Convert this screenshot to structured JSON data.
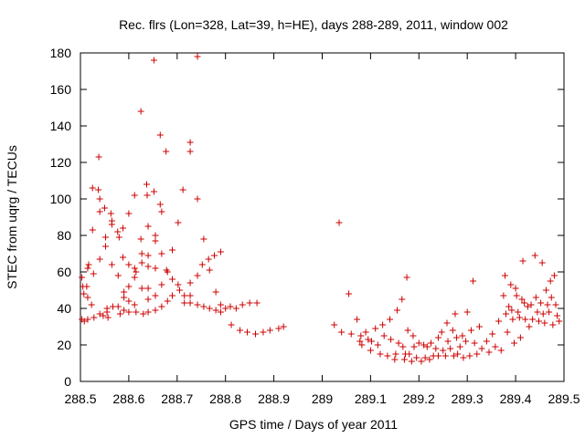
{
  "chart_data": {
    "type": "scatter",
    "title": "Rec. flrs (Lon=328, Lat=39, h=HE), days 288-289, 2011, window 002",
    "xlabel": "GPS time / Days of year 2011",
    "ylabel": "STEC from uqrg / TECUs",
    "xlim": [
      288.5,
      289.5
    ],
    "ylim": [
      0,
      180
    ],
    "x_ticks": [
      288.5,
      288.6,
      288.7,
      288.8,
      288.9,
      289,
      289.1,
      289.2,
      289.3,
      289.4,
      289.5
    ],
    "x_tick_labels": [
      "288.5",
      "288.6",
      "288.7",
      "288.8",
      "288.9",
      "289",
      "289.1",
      "289.2",
      "289.3",
      "289.4",
      "289.5"
    ],
    "y_ticks": [
      0,
      20,
      40,
      60,
      80,
      100,
      120,
      140,
      160,
      180
    ],
    "y_tick_labels": [
      "0",
      "20",
      "40",
      "60",
      "80",
      "100",
      "120",
      "140",
      "160",
      "180"
    ],
    "marker": "+",
    "marker_color": "#cc0000",
    "grid": false,
    "points": [
      [
        288.503,
        57
      ],
      [
        288.505,
        52
      ],
      [
        288.507,
        48
      ],
      [
        288.503,
        34
      ],
      [
        288.508,
        33
      ],
      [
        288.515,
        62
      ],
      [
        288.517,
        64
      ],
      [
        288.513,
        52
      ],
      [
        288.515,
        46
      ],
      [
        288.515,
        34
      ],
      [
        288.525,
        106
      ],
      [
        288.525,
        83
      ],
      [
        288.527,
        59
      ],
      [
        288.523,
        42
      ],
      [
        288.528,
        35
      ],
      [
        288.538,
        123
      ],
      [
        288.537,
        105
      ],
      [
        288.54,
        100
      ],
      [
        288.54,
        93
      ],
      [
        288.54,
        67
      ],
      [
        288.54,
        37
      ],
      [
        288.547,
        36
      ],
      [
        288.55,
        95
      ],
      [
        288.552,
        79
      ],
      [
        288.552,
        74
      ],
      [
        288.555,
        40
      ],
      [
        288.555,
        38
      ],
      [
        288.557,
        35
      ],
      [
        288.563,
        92
      ],
      [
        288.565,
        88
      ],
      [
        288.565,
        86
      ],
      [
        288.565,
        64
      ],
      [
        288.567,
        41
      ],
      [
        288.577,
        82
      ],
      [
        288.58,
        79
      ],
      [
        288.578,
        58
      ],
      [
        288.578,
        41
      ],
      [
        288.582,
        37
      ],
      [
        288.588,
        84
      ],
      [
        288.588,
        68
      ],
      [
        288.59,
        49
      ],
      [
        288.59,
        46
      ],
      [
        288.59,
        39
      ],
      [
        288.6,
        92
      ],
      [
        288.6,
        64
      ],
      [
        288.6,
        52
      ],
      [
        288.6,
        44
      ],
      [
        288.6,
        38
      ],
      [
        288.612,
        102
      ],
      [
        288.612,
        62
      ],
      [
        288.615,
        60
      ],
      [
        288.612,
        57
      ],
      [
        288.612,
        42
      ],
      [
        288.615,
        38
      ],
      [
        288.625,
        148
      ],
      [
        288.625,
        78
      ],
      [
        288.627,
        70
      ],
      [
        288.627,
        65
      ],
      [
        288.627,
        51
      ],
      [
        288.63,
        37
      ],
      [
        288.637,
        108
      ],
      [
        288.638,
        102
      ],
      [
        288.64,
        85
      ],
      [
        288.64,
        69
      ],
      [
        288.64,
        63
      ],
      [
        288.64,
        51
      ],
      [
        288.64,
        45
      ],
      [
        288.64,
        38
      ],
      [
        288.652,
        176
      ],
      [
        288.652,
        104
      ],
      [
        288.655,
        80
      ],
      [
        288.655,
        77
      ],
      [
        288.655,
        62
      ],
      [
        288.655,
        47
      ],
      [
        288.655,
        39
      ],
      [
        288.665,
        135
      ],
      [
        288.665,
        97
      ],
      [
        288.668,
        93
      ],
      [
        288.668,
        70
      ],
      [
        288.668,
        53
      ],
      [
        288.668,
        41
      ],
      [
        288.677,
        126
      ],
      [
        288.678,
        61
      ],
      [
        288.68,
        60
      ],
      [
        288.68,
        44
      ],
      [
        288.69,
        72
      ],
      [
        288.69,
        56
      ],
      [
        288.69,
        47
      ],
      [
        288.702,
        87
      ],
      [
        288.702,
        53
      ],
      [
        288.705,
        50
      ],
      [
        288.712,
        105
      ],
      [
        288.715,
        47
      ],
      [
        288.715,
        43
      ],
      [
        288.727,
        131
      ],
      [
        288.727,
        126
      ],
      [
        288.727,
        54
      ],
      [
        288.727,
        47
      ],
      [
        288.727,
        43
      ],
      [
        288.742,
        178
      ],
      [
        288.742,
        100
      ],
      [
        288.742,
        58
      ],
      [
        288.742,
        42
      ],
      [
        288.755,
        78
      ],
      [
        288.752,
        64
      ],
      [
        288.755,
        41
      ],
      [
        288.765,
        67
      ],
      [
        288.767,
        61
      ],
      [
        288.767,
        40
      ],
      [
        288.777,
        69
      ],
      [
        288.78,
        39
      ],
      [
        288.78,
        49
      ],
      [
        288.79,
        71
      ],
      [
        288.79,
        42
      ],
      [
        288.79,
        38
      ],
      [
        288.8,
        40
      ],
      [
        288.81,
        41
      ],
      [
        288.812,
        31
      ],
      [
        288.822,
        40
      ],
      [
        288.83,
        28
      ],
      [
        288.835,
        42
      ],
      [
        288.845,
        27
      ],
      [
        288.85,
        43
      ],
      [
        288.862,
        26
      ],
      [
        288.865,
        43
      ],
      [
        288.878,
        27
      ],
      [
        288.892,
        28
      ],
      [
        288.91,
        29
      ],
      [
        288.92,
        30
      ],
      [
        289.025,
        31
      ],
      [
        289.035,
        87
      ],
      [
        289.04,
        27
      ],
      [
        289.055,
        48
      ],
      [
        289.06,
        26
      ],
      [
        289.072,
        34
      ],
      [
        289.078,
        22
      ],
      [
        289.08,
        25
      ],
      [
        289.082,
        20
      ],
      [
        289.09,
        27
      ],
      [
        289.095,
        23
      ],
      [
        289.1,
        17
      ],
      [
        289.102,
        22
      ],
      [
        289.11,
        29
      ],
      [
        289.115,
        20
      ],
      [
        289.12,
        15
      ],
      [
        289.125,
        31
      ],
      [
        289.128,
        25
      ],
      [
        289.135,
        14
      ],
      [
        289.14,
        34
      ],
      [
        289.142,
        23
      ],
      [
        289.15,
        12
      ],
      [
        289.152,
        15
      ],
      [
        289.155,
        39
      ],
      [
        289.158,
        21
      ],
      [
        289.165,
        45
      ],
      [
        289.167,
        19
      ],
      [
        289.17,
        12
      ],
      [
        289.172,
        15
      ],
      [
        289.175,
        57
      ],
      [
        289.177,
        28
      ],
      [
        289.18,
        15
      ],
      [
        289.185,
        11
      ],
      [
        289.188,
        25
      ],
      [
        289.19,
        19
      ],
      [
        289.195,
        13
      ],
      [
        289.2,
        21
      ],
      [
        289.205,
        11
      ],
      [
        289.21,
        20
      ],
      [
        289.213,
        13
      ],
      [
        289.217,
        19
      ],
      [
        289.222,
        12
      ],
      [
        289.225,
        21
      ],
      [
        289.23,
        14
      ],
      [
        289.235,
        18
      ],
      [
        289.24,
        24
      ],
      [
        289.24,
        14
      ],
      [
        289.247,
        27
      ],
      [
        289.25,
        17
      ],
      [
        289.255,
        14
      ],
      [
        289.258,
        32
      ],
      [
        289.26,
        22
      ],
      [
        289.265,
        18
      ],
      [
        289.27,
        28
      ],
      [
        289.272,
        14
      ],
      [
        289.275,
        37
      ],
      [
        289.278,
        24
      ],
      [
        289.28,
        15
      ],
      [
        289.285,
        19
      ],
      [
        289.29,
        25
      ],
      [
        289.292,
        13
      ],
      [
        289.297,
        22
      ],
      [
        289.3,
        38
      ],
      [
        289.305,
        14
      ],
      [
        289.308,
        28
      ],
      [
        289.312,
        55
      ],
      [
        289.315,
        21
      ],
      [
        289.32,
        15
      ],
      [
        289.325,
        30
      ],
      [
        289.33,
        18
      ],
      [
        289.34,
        22
      ],
      [
        289.345,
        16
      ],
      [
        289.352,
        26
      ],
      [
        289.358,
        19
      ],
      [
        289.365,
        33
      ],
      [
        289.37,
        17
      ],
      [
        289.375,
        47
      ],
      [
        289.378,
        58
      ],
      [
        289.38,
        37
      ],
      [
        289.383,
        27
      ],
      [
        289.386,
        41
      ],
      [
        289.39,
        53
      ],
      [
        289.392,
        39
      ],
      [
        289.394,
        34
      ],
      [
        289.397,
        21
      ],
      [
        289.4,
        51
      ],
      [
        289.402,
        47
      ],
      [
        289.405,
        38
      ],
      [
        289.408,
        35
      ],
      [
        289.41,
        24
      ],
      [
        289.413,
        45
      ],
      [
        289.415,
        66
      ],
      [
        289.418,
        43
      ],
      [
        289.42,
        34
      ],
      [
        289.425,
        41
      ],
      [
        289.428,
        30
      ],
      [
        289.432,
        42
      ],
      [
        289.435,
        34
      ],
      [
        289.44,
        69
      ],
      [
        289.442,
        46
      ],
      [
        289.445,
        38
      ],
      [
        289.448,
        33
      ],
      [
        289.452,
        43
      ],
      [
        289.455,
        65
      ],
      [
        289.457,
        37
      ],
      [
        289.46,
        32
      ],
      [
        289.463,
        50
      ],
      [
        289.466,
        42
      ],
      [
        289.469,
        38
      ],
      [
        289.472,
        55
      ],
      [
        289.474,
        46
      ],
      [
        289.477,
        31
      ],
      [
        289.48,
        58
      ],
      [
        289.483,
        42
      ],
      [
        289.486,
        36
      ],
      [
        289.49,
        33
      ]
    ]
  }
}
